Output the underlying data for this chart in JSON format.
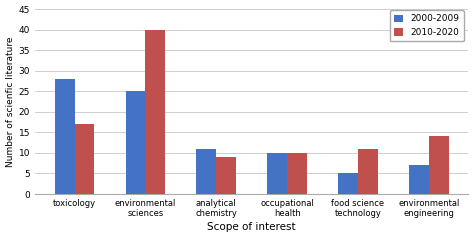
{
  "categories": [
    "toxicology",
    "environmental\nsciences",
    "analytical\nchemistry",
    "occupational\nhealth",
    "food science\ntechnology",
    "environmental\nengineering"
  ],
  "series": {
    "2000-2009": [
      28,
      25,
      11,
      10,
      5,
      7
    ],
    "2010-2020": [
      17,
      40,
      9,
      10,
      11,
      14
    ]
  },
  "bar_colors": {
    "2000-2009": "#4472C4",
    "2010-2020": "#C0504D"
  },
  "ylabel": "Number of scienfic literature",
  "xlabel": "Scope of interest",
  "ylim": [
    0,
    45
  ],
  "yticks": [
    0,
    5,
    10,
    15,
    20,
    25,
    30,
    35,
    40,
    45
  ],
  "bar_width": 0.28,
  "legend_labels": [
    "2000-2009",
    "2010-2020"
  ],
  "background_color": "#ffffff",
  "grid_color": "#c8c8c8",
  "fig_width": 4.74,
  "fig_height": 2.38
}
